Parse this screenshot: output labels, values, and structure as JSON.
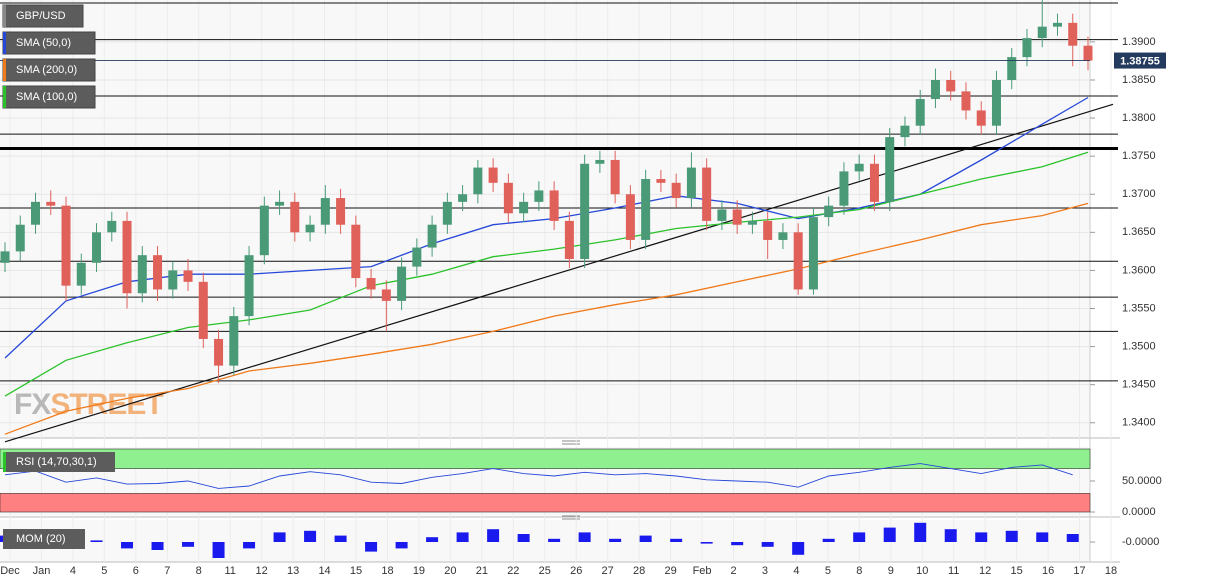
{
  "chart_data": {
    "type": "candlestick",
    "symbol": "GBP/USD",
    "watermark": {
      "prefix": "FX",
      "suffix": "STREET"
    },
    "up_color": "#4a9a78",
    "down_color": "#e0605a",
    "grid": true,
    "categories": [
      "Dec",
      "Jan",
      "4",
      "5",
      "6",
      "7",
      "8",
      "11",
      "12",
      "13",
      "14",
      "15",
      "18",
      "19",
      "20",
      "21",
      "22",
      "25",
      "26",
      "27",
      "28",
      "29",
      "Feb",
      "2",
      "3",
      "4",
      "5",
      "8",
      "9",
      "10",
      "11",
      "12",
      "15",
      "16",
      "17",
      "18"
    ],
    "candles": [
      [
        1.361,
        1.3637,
        1.3598,
        1.3625
      ],
      [
        1.3625,
        1.3672,
        1.3613,
        1.366
      ],
      [
        1.366,
        1.3702,
        1.3648,
        1.369
      ],
      [
        1.369,
        1.3705,
        1.3673,
        1.3685
      ],
      [
        1.3685,
        1.3697,
        1.356,
        1.358
      ],
      [
        1.358,
        1.3622,
        1.3568,
        1.361
      ],
      [
        1.361,
        1.3662,
        1.3598,
        1.365
      ],
      [
        1.365,
        1.3677,
        1.3638,
        1.3665
      ],
      [
        1.3665,
        1.3677,
        1.355,
        1.357
      ],
      [
        1.357,
        1.3632,
        1.3558,
        1.362
      ],
      [
        1.362,
        1.3632,
        1.356,
        1.3575
      ],
      [
        1.3575,
        1.3612,
        1.3563,
        1.36
      ],
      [
        1.36,
        1.3615,
        1.3573,
        1.3585
      ],
      [
        1.3585,
        1.3597,
        1.3498,
        1.351
      ],
      [
        1.351,
        1.3522,
        1.3452,
        1.3475
      ],
      [
        1.3475,
        1.3552,
        1.3463,
        1.354
      ],
      [
        1.354,
        1.3632,
        1.3528,
        1.362
      ],
      [
        1.362,
        1.3697,
        1.3608,
        1.3685
      ],
      [
        1.3685,
        1.3705,
        1.3673,
        1.369
      ],
      [
        1.369,
        1.3702,
        1.3638,
        1.365
      ],
      [
        1.365,
        1.3672,
        1.3638,
        1.366
      ],
      [
        1.366,
        1.3712,
        1.3648,
        1.3695
      ],
      [
        1.3695,
        1.3707,
        1.3648,
        1.366
      ],
      [
        1.366,
        1.3672,
        1.3578,
        1.359
      ],
      [
        1.359,
        1.3602,
        1.3563,
        1.3575
      ],
      [
        1.3575,
        1.3587,
        1.352,
        1.356
      ],
      [
        1.356,
        1.3617,
        1.3548,
        1.3605
      ],
      [
        1.3605,
        1.3642,
        1.3593,
        1.363
      ],
      [
        1.363,
        1.3672,
        1.3618,
        1.366
      ],
      [
        1.366,
        1.3702,
        1.3648,
        1.369
      ],
      [
        1.369,
        1.3712,
        1.3678,
        1.37
      ],
      [
        1.37,
        1.3745,
        1.3688,
        1.3735
      ],
      [
        1.3735,
        1.3747,
        1.3703,
        1.3715
      ],
      [
        1.3715,
        1.3727,
        1.3663,
        1.3675
      ],
      [
        1.3675,
        1.3702,
        1.3663,
        1.369
      ],
      [
        1.369,
        1.3717,
        1.3678,
        1.3705
      ],
      [
        1.3705,
        1.3717,
        1.3653,
        1.3665
      ],
      [
        1.3665,
        1.3677,
        1.3603,
        1.3615
      ],
      [
        1.3615,
        1.3752,
        1.3603,
        1.374
      ],
      [
        1.374,
        1.3757,
        1.3728,
        1.3745
      ],
      [
        1.3745,
        1.3757,
        1.3688,
        1.37
      ],
      [
        1.37,
        1.3712,
        1.3628,
        1.364
      ],
      [
        1.364,
        1.3732,
        1.3628,
        1.372
      ],
      [
        1.372,
        1.3732,
        1.3703,
        1.3715
      ],
      [
        1.3715,
        1.3727,
        1.3683,
        1.3695
      ],
      [
        1.3695,
        1.3755,
        1.3683,
        1.3735
      ],
      [
        1.3735,
        1.3747,
        1.3653,
        1.3665
      ],
      [
        1.3665,
        1.3692,
        1.3653,
        1.368
      ],
      [
        1.368,
        1.3692,
        1.3648,
        1.366
      ],
      [
        1.366,
        1.3677,
        1.3648,
        1.3665
      ],
      [
        1.3665,
        1.3677,
        1.3615,
        1.364
      ],
      [
        1.364,
        1.3662,
        1.3628,
        1.365
      ],
      [
        1.365,
        1.3662,
        1.3568,
        1.3575
      ],
      [
        1.3575,
        1.3682,
        1.3568,
        1.367
      ],
      [
        1.367,
        1.3697,
        1.3658,
        1.3685
      ],
      [
        1.3685,
        1.3742,
        1.3673,
        1.373
      ],
      [
        1.373,
        1.3752,
        1.3718,
        1.374
      ],
      [
        1.374,
        1.3752,
        1.3678,
        1.369
      ],
      [
        1.369,
        1.3787,
        1.3678,
        1.3775
      ],
      [
        1.3775,
        1.3802,
        1.3763,
        1.379
      ],
      [
        1.379,
        1.3837,
        1.3778,
        1.3825
      ],
      [
        1.3825,
        1.3865,
        1.3813,
        1.385
      ],
      [
        1.385,
        1.3862,
        1.3823,
        1.3835
      ],
      [
        1.3835,
        1.3847,
        1.3798,
        1.381
      ],
      [
        1.381,
        1.3822,
        1.3778,
        1.379
      ],
      [
        1.379,
        1.3862,
        1.3778,
        1.385
      ],
      [
        1.385,
        1.3892,
        1.3838,
        1.388
      ],
      [
        1.388,
        1.3917,
        1.3868,
        1.3905
      ],
      [
        1.3905,
        1.3955,
        1.3893,
        1.392
      ],
      [
        1.392,
        1.3937,
        1.3908,
        1.3925
      ],
      [
        1.3925,
        1.3937,
        1.3868,
        1.3895
      ],
      [
        1.3895,
        1.3907,
        1.3863,
        1.38755
      ]
    ],
    "last_price": 1.38755,
    "series": [
      {
        "name": "SMA (50,0)",
        "color": "#2648d8",
        "x": [
          0,
          4,
          8,
          12,
          16,
          20,
          24,
          28,
          32,
          36,
          40,
          44,
          48,
          52,
          56,
          60,
          64,
          68,
          71
        ],
        "values": [
          1.3485,
          1.356,
          1.3585,
          1.3595,
          1.3595,
          1.36,
          1.3605,
          1.3635,
          1.366,
          1.3668,
          1.3682,
          1.3698,
          1.3688,
          1.3668,
          1.3682,
          1.37,
          1.3745,
          1.3792,
          1.3827
        ]
      },
      {
        "name": "SMA (200,0)",
        "color": "#f07a1a",
        "x": [
          0,
          4,
          8,
          12,
          16,
          20,
          24,
          28,
          32,
          36,
          40,
          44,
          48,
          52,
          56,
          60,
          64,
          68,
          71
        ],
        "values": [
          1.3385,
          1.3415,
          1.3432,
          1.3445,
          1.3468,
          1.3478,
          1.349,
          1.3503,
          1.352,
          1.354,
          1.3555,
          1.3568,
          1.3585,
          1.3602,
          1.3622,
          1.364,
          1.366,
          1.3672,
          1.3688
        ]
      },
      {
        "name": "SMA (100,0)",
        "color": "#2cc22c",
        "x": [
          0,
          4,
          8,
          12,
          16,
          20,
          24,
          28,
          32,
          36,
          40,
          44,
          48,
          52,
          56,
          60,
          64,
          68,
          71
        ],
        "values": [
          1.3435,
          1.3482,
          1.3505,
          1.3525,
          1.3535,
          1.3548,
          1.358,
          1.3595,
          1.3618,
          1.3628,
          1.364,
          1.3655,
          1.3663,
          1.367,
          1.368,
          1.37,
          1.372,
          1.3736,
          1.3755
        ]
      }
    ],
    "levels": [
      1.3951,
      1.3903,
      1.3829,
      1.3779,
      1.3682,
      1.3612,
      1.3565,
      1.352,
      1.3455
    ],
    "key_level": 1.376,
    "trendline": {
      "x": [
        0,
        71
      ],
      "values": [
        1.3375,
        1.3808
      ]
    },
    "ylim": [
      1.338,
      1.3955
    ],
    "yticks": [
      {
        "value": 1.34,
        "label": "1.3400"
      },
      {
        "value": 1.345,
        "label": "1.3450"
      },
      {
        "value": 1.35,
        "label": "1.3500"
      },
      {
        "value": 1.355,
        "label": "1.3550"
      },
      {
        "value": 1.36,
        "label": "1.3600"
      },
      {
        "value": 1.365,
        "label": "1.3650"
      },
      {
        "value": 1.37,
        "label": "1.3700"
      },
      {
        "value": 1.375,
        "label": "1.3750"
      },
      {
        "value": 1.38,
        "label": "1.3800"
      },
      {
        "value": 1.385,
        "label": "1.3850"
      },
      {
        "value": 1.39,
        "label": "1.3900"
      }
    ],
    "rsi": {
      "name": "RSI (14,70,30,1)",
      "color": "#2648d8",
      "overbought": 70,
      "oversold": 30,
      "x": [
        0,
        2,
        4,
        6,
        8,
        10,
        12,
        14,
        16,
        18,
        20,
        22,
        24,
        26,
        28,
        30,
        32,
        34,
        36,
        38,
        40,
        42,
        44,
        46,
        48,
        50,
        52,
        54,
        56,
        58,
        60,
        62,
        64,
        66,
        68,
        70
      ],
      "values": [
        60,
        66,
        48,
        55,
        45,
        46,
        50,
        38,
        42,
        58,
        65,
        60,
        48,
        46,
        56,
        62,
        70,
        62,
        58,
        64,
        60,
        62,
        58,
        52,
        50,
        48,
        40,
        58,
        64,
        72,
        78,
        70,
        62,
        72,
        76,
        60
      ],
      "ylim": [
        0,
        100
      ],
      "yticks": [
        {
          "value": 50,
          "label": "50.0000"
        },
        {
          "value": 0,
          "label": "0.0000"
        }
      ]
    },
    "momentum": {
      "name": "MOM (20)",
      "color": "#1a1aee",
      "x": [
        0,
        2,
        4,
        6,
        8,
        10,
        12,
        14,
        16,
        18,
        20,
        22,
        24,
        26,
        28,
        30,
        32,
        34,
        36,
        38,
        40,
        42,
        44,
        46,
        48,
        50,
        52,
        54,
        56,
        58,
        60,
        62,
        64,
        66,
        68,
        70
      ],
      "values": [
        0.004,
        0.008,
        -0.002,
        0.001,
        -0.004,
        -0.005,
        -0.003,
        -0.01,
        -0.004,
        0.006,
        0.007,
        0.004,
        -0.006,
        -0.004,
        0.003,
        0.006,
        0.008,
        0.005,
        0.002,
        0.006,
        0.002,
        0.004,
        0.002,
        -0.001,
        -0.002,
        -0.003,
        -0.008,
        0.002,
        0.006,
        0.009,
        0.012,
        0.008,
        0.006,
        0.007,
        0.006,
        0.005
      ],
      "ylim": [
        -0.0125,
        0.0125
      ],
      "yticks": [
        {
          "value": 0,
          "label": "-0.0000"
        }
      ]
    }
  }
}
